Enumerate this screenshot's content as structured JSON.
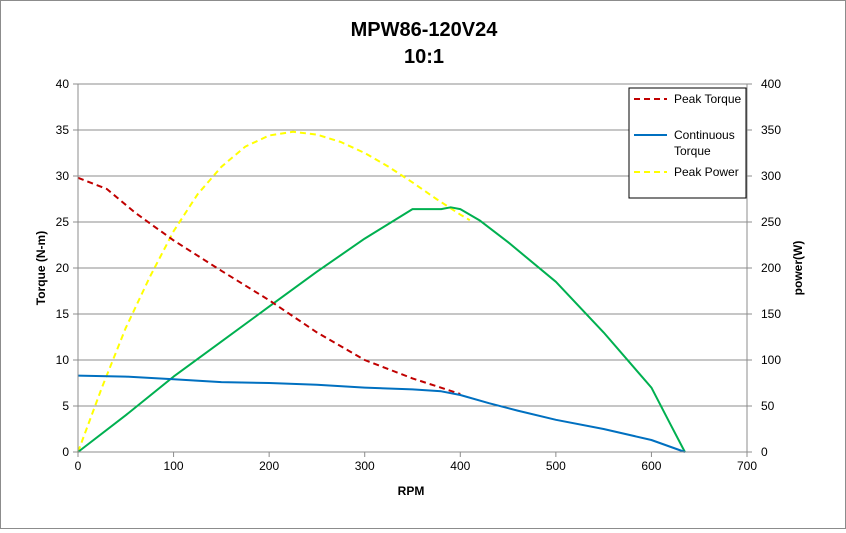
{
  "chart_data": {
    "type": "line",
    "title": "MPW86-120V24",
    "subtitle": "10:1",
    "xlabel": "RPM",
    "ylabel": "Torque (N-m)",
    "y2label": "power(W)",
    "xlim": [
      0,
      700
    ],
    "ylim": [
      0,
      40
    ],
    "y2lim": [
      0,
      400
    ],
    "xticks": [
      "0",
      "100",
      "200",
      "300",
      "400",
      "500",
      "600",
      "700"
    ],
    "yticks": [
      "0",
      "5",
      "10",
      "15",
      "20",
      "25",
      "30",
      "35",
      "40"
    ],
    "y2ticks": [
      "0",
      "50",
      "100",
      "150",
      "200",
      "250",
      "300",
      "350",
      "400"
    ],
    "grid": true,
    "legend_position": "top-right",
    "series": [
      {
        "name": "Peak Torque",
        "axis": "left",
        "color": "#c00000",
        "dash": "dashed",
        "x": [
          0,
          30,
          60,
          100,
          150,
          200,
          250,
          300,
          350,
          400
        ],
        "y": [
          29.8,
          28.6,
          26.0,
          23.0,
          19.7,
          16.5,
          13.0,
          10.0,
          8.0,
          6.3
        ]
      },
      {
        "name": "Continuous Torque",
        "axis": "left",
        "color": "#0070c0",
        "dash": "solid",
        "x": [
          0,
          50,
          100,
          150,
          200,
          250,
          300,
          350,
          380,
          400,
          430,
          460,
          500,
          550,
          600,
          635
        ],
        "y": [
          8.3,
          8.2,
          7.9,
          7.6,
          7.5,
          7.3,
          7.0,
          6.8,
          6.6,
          6.2,
          5.3,
          4.5,
          3.5,
          2.5,
          1.3,
          0
        ]
      },
      {
        "name": "Peak Power",
        "axis": "right",
        "color": "#ffff00",
        "dash": "dashed",
        "x": [
          0,
          25,
          50,
          75,
          100,
          125,
          150,
          175,
          200,
          225,
          250,
          275,
          300,
          325,
          350,
          375,
          400,
          410
        ],
        "y": [
          0,
          70,
          135,
          190,
          240,
          280,
          310,
          332,
          344,
          348,
          345,
          337,
          325,
          310,
          293,
          275,
          258,
          252
        ]
      },
      {
        "name": "",
        "axis": "right",
        "color": "#00b050",
        "dash": "solid",
        "x": [
          0,
          50,
          100,
          150,
          200,
          250,
          300,
          350,
          380,
          390,
          400,
          420,
          450,
          500,
          550,
          600,
          620,
          635
        ],
        "y": [
          0,
          40,
          82,
          120,
          158,
          196,
          232,
          264,
          264,
          266,
          264,
          252,
          228,
          185,
          130,
          70,
          30,
          0
        ]
      }
    ]
  }
}
